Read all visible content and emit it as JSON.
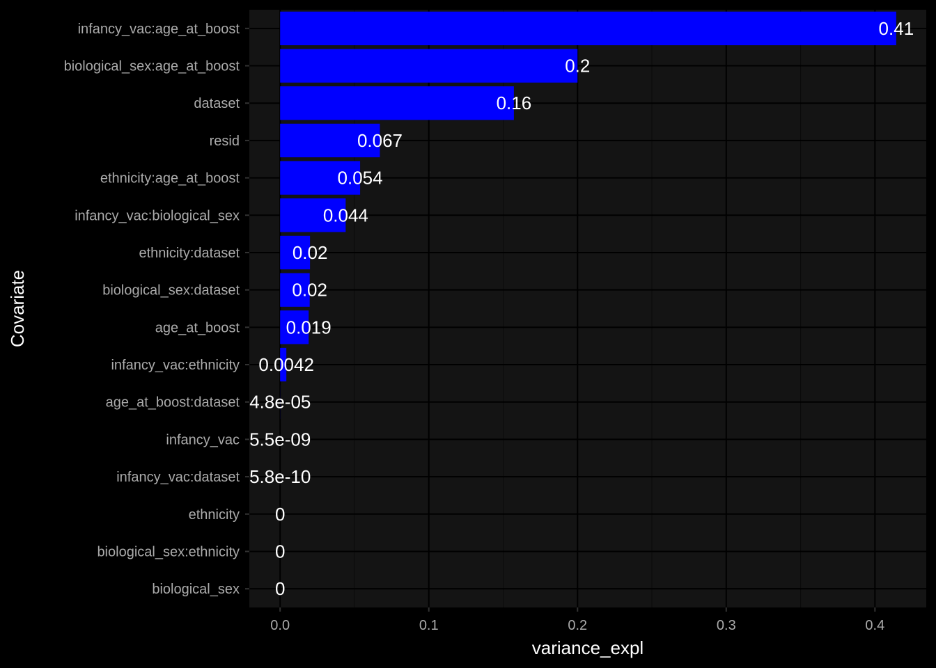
{
  "chart_data": {
    "type": "bar",
    "orientation": "horizontal",
    "title": "",
    "xlabel": "variance_expl",
    "ylabel": "Covariate",
    "xlim": [
      -0.0207,
      0.4345
    ],
    "x_ticks": [
      0.0,
      0.1,
      0.2,
      0.3,
      0.4
    ],
    "x_tick_labels": [
      "0.0",
      "0.1",
      "0.2",
      "0.3",
      "0.4"
    ],
    "grid": true,
    "colors": {
      "background": "#000000",
      "panel": "#141414",
      "grid_major": "#000000",
      "grid_minor": "#0a0a0a",
      "bar": "#0000FF",
      "text": "#FFFFFF",
      "tick_text": "#ABABAB"
    },
    "categories": [
      "infancy_vac:age_at_boost",
      "biological_sex:age_at_boost",
      "dataset",
      "resid",
      "ethnicity:age_at_boost",
      "infancy_vac:biological_sex",
      "ethnicity:dataset",
      "biological_sex:dataset",
      "age_at_boost",
      "infancy_vac:ethnicity",
      "age_at_boost:dataset",
      "infancy_vac",
      "infancy_vac:dataset",
      "ethnicity",
      "biological_sex:ethnicity",
      "biological_sex"
    ],
    "values": [
      0.4143,
      0.2,
      0.1572,
      0.0671,
      0.0538,
      0.0441,
      0.0201,
      0.0199,
      0.0192,
      0.0042,
      4.8e-05,
      5.5e-09,
      5.8e-10,
      0,
      0,
      0
    ],
    "value_labels": [
      "0.41",
      "0.2",
      "0.16",
      "0.067",
      "0.054",
      "0.044",
      "0.02",
      "0.02",
      "0.019",
      "0.0042",
      "4.8e-05",
      "5.5e-09",
      "5.8e-10",
      "0",
      "0",
      "0"
    ]
  }
}
